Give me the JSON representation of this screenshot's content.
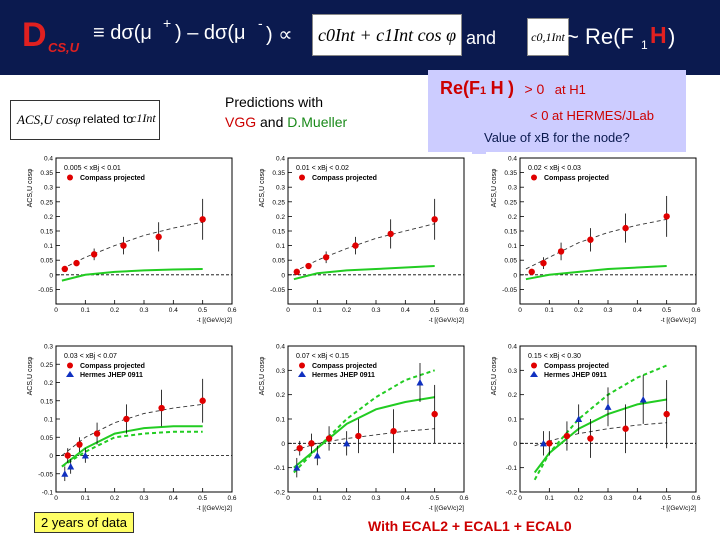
{
  "header": {
    "title_main": "D",
    "title_sub": "CS,U",
    "eq_left": "≡ dσ(μ",
    "eq_plus": "+",
    "eq_mid": ") – dσ(μ",
    "eq_minus": "-",
    "eq_right": ") ∝",
    "formula": "c0Int + c1Int cos φ",
    "and": "and",
    "c01": "c0,1Int",
    "re_label": "~ Re(F",
    "re_sub": "1",
    "re_H": "H",
    "re_close": ")"
  },
  "info_box": {
    "line1_prefix": "Re(F",
    "line1_sub": "1",
    "line1_H": "H",
    "line1_suffix": ")",
    "line1_rel": "> 0",
    "line1_where": "at H1",
    "line2": "< 0  at HERMES/JLab",
    "line3": "Value of xB for the node?"
  },
  "asym_box": {
    "symbol": "ACS,U cosφ",
    "text": "related to",
    "target": "c1Int"
  },
  "predictions": {
    "line1": "Predictions with",
    "vgg": "VGG",
    "and": "and",
    "mueller": "D.Mueller"
  },
  "bottom": {
    "left": "2 years of data",
    "right": "With ECAL2 + ECAL1 + ECAL0"
  },
  "colors": {
    "header_bg": "#0b1a4f",
    "title_red": "#e02020",
    "info_bg": "#ccccff",
    "vgg_red": "#cc0000",
    "mueller_green": "#1a8a1a",
    "compass": "#e00000",
    "hermes": "#1030c0",
    "green_curve": "#22cc22"
  },
  "chart_data": [
    {
      "type": "scatter",
      "bin": "0.005 < xBj < 0.01",
      "ylabel": "ACS,U cosφ",
      "xlabel": "-t [(GeV/c)2]",
      "xlim": [
        0,
        0.6
      ],
      "ylim": [
        -0.1,
        0.4
      ],
      "xticks": [
        0,
        0.1,
        0.2,
        0.3,
        0.4,
        0.5,
        0.6
      ],
      "xticklabels": [
        "0",
        "0.1",
        "0.2",
        "0.3",
        "0.4",
        "0.5",
        "0.6"
      ],
      "yticks": [
        -0.1,
        -0.05,
        0,
        0.05,
        0.1,
        0.15,
        0.2,
        0.25,
        0.3,
        0.35,
        0.4
      ],
      "yticklabels": [
        "",
        "-0.05",
        "0",
        "0.05",
        "0.1",
        "0.15",
        "0.2",
        "0.25",
        "0.3",
        "0.35",
        "0.4"
      ],
      "series": [
        {
          "name": "Compass projected",
          "kind": "points",
          "color": "#e00000",
          "x": [
            0.03,
            0.07,
            0.13,
            0.23,
            0.35,
            0.5
          ],
          "y": [
            0.02,
            0.04,
            0.07,
            0.1,
            0.13,
            0.19
          ],
          "err": [
            0.01,
            0.01,
            0.02,
            0.03,
            0.05,
            0.07
          ]
        },
        {
          "kind": "line",
          "style": "dashed",
          "color": "#333333",
          "x": [
            0.02,
            0.1,
            0.2,
            0.3,
            0.4,
            0.5
          ],
          "y": [
            0.02,
            0.06,
            0.1,
            0.135,
            0.16,
            0.18
          ]
        },
        {
          "kind": "line",
          "style": "solid",
          "color": "#22cc22",
          "x": [
            0.02,
            0.1,
            0.2,
            0.3,
            0.4,
            0.5
          ],
          "y": [
            -0.02,
            0.0,
            0.01,
            0.015,
            0.018,
            0.02
          ]
        }
      ]
    },
    {
      "type": "scatter",
      "bin": "0.01 < xBj < 0.02",
      "ylabel": "ACS,U cosφ",
      "xlabel": "-t [(GeV/c)2]",
      "xlim": [
        0,
        0.6
      ],
      "ylim": [
        -0.1,
        0.4
      ],
      "xticks": [
        0,
        0.1,
        0.2,
        0.3,
        0.4,
        0.5,
        0.6
      ],
      "xticklabels": [
        "0",
        "0.1",
        "0.2",
        "0.3",
        "0.4",
        "0.5",
        "0.6"
      ],
      "yticks": [
        -0.1,
        -0.05,
        0,
        0.05,
        0.1,
        0.15,
        0.2,
        0.25,
        0.3,
        0.35,
        0.4
      ],
      "yticklabels": [
        "",
        "-0.05",
        "0",
        "0.05",
        "0.1",
        "0.15",
        "0.2",
        "0.25",
        "0.3",
        "0.35",
        "0.4"
      ],
      "series": [
        {
          "name": "Compass projected",
          "kind": "points",
          "color": "#e00000",
          "x": [
            0.03,
            0.07,
            0.13,
            0.23,
            0.35,
            0.5
          ],
          "y": [
            0.01,
            0.03,
            0.06,
            0.1,
            0.14,
            0.19
          ],
          "err": [
            0.01,
            0.01,
            0.02,
            0.03,
            0.05,
            0.07
          ]
        },
        {
          "kind": "line",
          "style": "dashed",
          "color": "#333333",
          "x": [
            0.02,
            0.1,
            0.2,
            0.3,
            0.4,
            0.5
          ],
          "y": [
            0.01,
            0.05,
            0.09,
            0.125,
            0.15,
            0.175
          ]
        },
        {
          "kind": "line",
          "style": "solid",
          "color": "#22cc22",
          "x": [
            0.02,
            0.1,
            0.2,
            0.3,
            0.4,
            0.5
          ],
          "y": [
            -0.015,
            0.005,
            0.015,
            0.02,
            0.025,
            0.03
          ]
        }
      ]
    },
    {
      "type": "scatter",
      "bin": "0.02 < xBj < 0.03",
      "ylabel": "ACS,U cosφ",
      "xlabel": "-t [(GeV/c)2]",
      "xlim": [
        0,
        0.6
      ],
      "ylim": [
        -0.1,
        0.4
      ],
      "xticks": [
        0,
        0.1,
        0.2,
        0.3,
        0.4,
        0.5,
        0.6
      ],
      "xticklabels": [
        "0",
        "0.1",
        "0.2",
        "0.3",
        "0.4",
        "0.5",
        "0.6"
      ],
      "yticks": [
        -0.1,
        -0.05,
        0,
        0.05,
        0.1,
        0.15,
        0.2,
        0.25,
        0.3,
        0.35,
        0.4
      ],
      "yticklabels": [
        "",
        "-0.05",
        "0",
        "0.05",
        "0.1",
        "0.15",
        "0.2",
        "0.25",
        "0.3",
        "0.35",
        "0.4"
      ],
      "series": [
        {
          "name": "Compass projected",
          "kind": "points",
          "color": "#e00000",
          "x": [
            0.04,
            0.08,
            0.14,
            0.24,
            0.36,
            0.5
          ],
          "y": [
            0.01,
            0.04,
            0.08,
            0.12,
            0.16,
            0.2
          ],
          "err": [
            0.01,
            0.02,
            0.03,
            0.04,
            0.05,
            0.07
          ]
        },
        {
          "kind": "line",
          "style": "dashed",
          "color": "#333333",
          "x": [
            0.02,
            0.1,
            0.2,
            0.3,
            0.4,
            0.5
          ],
          "y": [
            0.02,
            0.06,
            0.11,
            0.145,
            0.17,
            0.19
          ]
        },
        {
          "kind": "line",
          "style": "solid",
          "color": "#22cc22",
          "x": [
            0.02,
            0.1,
            0.2,
            0.3,
            0.4,
            0.5
          ],
          "y": [
            -0.015,
            0.0,
            0.01,
            0.02,
            0.025,
            0.03
          ]
        }
      ]
    },
    {
      "type": "scatter",
      "bin": "0.03 < xBj < 0.07",
      "ylabel": "ACS,U cosφ",
      "xlabel": "-t [(GeV/c)2]",
      "xlim": [
        0,
        0.6
      ],
      "ylim": [
        -0.1,
        0.3
      ],
      "xticks": [
        0,
        0.1,
        0.2,
        0.3,
        0.4,
        0.5,
        0.6
      ],
      "xticklabels": [
        "0",
        "0.1",
        "0.2",
        "0.3",
        "0.4",
        "0.5",
        "0.6"
      ],
      "yticks": [
        -0.1,
        -0.05,
        0,
        0.05,
        0.1,
        0.15,
        0.2,
        0.25,
        0.3
      ],
      "yticklabels": [
        "-0.1",
        "-0.05",
        "0",
        "0.05",
        "0.1",
        "0.15",
        "0.2",
        "0.25",
        "0.3"
      ],
      "series": [
        {
          "name": "Compass projected",
          "kind": "points",
          "color": "#e00000",
          "x": [
            0.04,
            0.08,
            0.14,
            0.24,
            0.36,
            0.5
          ],
          "y": [
            0.0,
            0.03,
            0.06,
            0.1,
            0.13,
            0.15
          ],
          "err": [
            0.02,
            0.02,
            0.03,
            0.04,
            0.05,
            0.06
          ]
        },
        {
          "name": "Hermes JHEP 0911",
          "kind": "triangles",
          "color": "#1030c0",
          "x": [
            0.03,
            0.05,
            0.1
          ],
          "y": [
            -0.05,
            -0.03,
            0.0
          ],
          "err": [
            0.02,
            0.02,
            0.02
          ]
        },
        {
          "kind": "line",
          "style": "dashed",
          "color": "#333333",
          "x": [
            0.02,
            0.1,
            0.2,
            0.3,
            0.4,
            0.5
          ],
          "y": [
            0.0,
            0.05,
            0.09,
            0.115,
            0.13,
            0.14
          ]
        },
        {
          "kind": "line",
          "style": "solid",
          "color": "#22cc22",
          "x": [
            0.02,
            0.1,
            0.2,
            0.3,
            0.4,
            0.5
          ],
          "y": [
            -0.03,
            0.02,
            0.06,
            0.075,
            0.08,
            0.08
          ]
        },
        {
          "kind": "line",
          "style": "dashed",
          "color": "#22cc22",
          "x": [
            0.02,
            0.1,
            0.2,
            0.3,
            0.4,
            0.5
          ],
          "y": [
            -0.03,
            0.01,
            0.05,
            0.06,
            0.065,
            0.065
          ]
        }
      ]
    },
    {
      "type": "scatter",
      "bin": "0.07 < xBj < 0.15",
      "ylabel": "ACS,U cosφ",
      "xlabel": "-t [(GeV/c)2]",
      "xlim": [
        0,
        0.6
      ],
      "ylim": [
        -0.2,
        0.4
      ],
      "xticks": [
        0,
        0.1,
        0.2,
        0.3,
        0.4,
        0.5,
        0.6
      ],
      "xticklabels": [
        "0",
        "0.1",
        "0.2",
        "0.3",
        "0.4",
        "0.5",
        "0.6"
      ],
      "yticks": [
        -0.2,
        -0.1,
        0,
        0.1,
        0.2,
        0.3,
        0.4
      ],
      "yticklabels": [
        "-0.2",
        "-0.1",
        "0",
        "0.1",
        "0.2",
        "0.3",
        "0.4"
      ],
      "series": [
        {
          "name": "Compass projected",
          "kind": "points",
          "color": "#e00000",
          "x": [
            0.04,
            0.08,
            0.14,
            0.24,
            0.36,
            0.5
          ],
          "y": [
            -0.02,
            0.0,
            0.02,
            0.03,
            0.05,
            0.12
          ],
          "err": [
            0.03,
            0.04,
            0.05,
            0.07,
            0.09,
            0.12
          ]
        },
        {
          "name": "Hermes JHEP 0911",
          "kind": "triangles",
          "color": "#1030c0",
          "x": [
            0.03,
            0.1,
            0.2,
            0.45
          ],
          "y": [
            -0.1,
            -0.05,
            0.0,
            0.25
          ],
          "err": [
            0.04,
            0.04,
            0.05,
            0.08
          ]
        },
        {
          "kind": "line",
          "style": "dashed",
          "color": "#333333",
          "x": [
            0.02,
            0.1,
            0.2,
            0.3,
            0.4,
            0.5
          ],
          "y": [
            -0.03,
            0.0,
            0.02,
            0.035,
            0.05,
            0.06
          ]
        },
        {
          "kind": "line",
          "style": "solid",
          "color": "#22cc22",
          "x": [
            0.02,
            0.1,
            0.2,
            0.3,
            0.4,
            0.5
          ],
          "y": [
            -0.1,
            -0.02,
            0.08,
            0.14,
            0.17,
            0.19
          ]
        },
        {
          "kind": "line",
          "style": "dashed",
          "color": "#22cc22",
          "x": [
            0.02,
            0.1,
            0.2,
            0.3,
            0.4,
            0.5
          ],
          "y": [
            -0.12,
            -0.02,
            0.1,
            0.19,
            0.26,
            0.3
          ]
        }
      ]
    },
    {
      "type": "scatter",
      "bin": "0.15 < xBj < 0.30",
      "ylabel": "ACS,U cosφ",
      "xlabel": "-t [(GeV/c)2]",
      "xlim": [
        0,
        0.6
      ],
      "ylim": [
        -0.2,
        0.4
      ],
      "xticks": [
        0,
        0.1,
        0.2,
        0.3,
        0.4,
        0.5,
        0.6
      ],
      "xticklabels": [
        "0",
        "0.1",
        "0.2",
        "0.3",
        "0.4",
        "0.5",
        "0.6"
      ],
      "yticks": [
        -0.2,
        -0.1,
        0,
        0.1,
        0.2,
        0.3,
        0.4
      ],
      "yticklabels": [
        "-0.2",
        "-0.1",
        "0",
        "0.1",
        "0.2",
        "0.3",
        "0.4"
      ],
      "series": [
        {
          "name": "Compass projected",
          "kind": "points",
          "color": "#e00000",
          "x": [
            0.1,
            0.16,
            0.24,
            0.36,
            0.5
          ],
          "y": [
            0.0,
            0.03,
            0.02,
            0.06,
            0.12
          ],
          "err": [
            0.05,
            0.06,
            0.08,
            0.1,
            0.14
          ]
        },
        {
          "name": "Hermes JHEP 0911",
          "kind": "triangles",
          "color": "#1030c0",
          "x": [
            0.08,
            0.2,
            0.3,
            0.42
          ],
          "y": [
            0.0,
            0.1,
            0.15,
            0.18
          ],
          "err": [
            0.05,
            0.06,
            0.08,
            0.1
          ]
        },
        {
          "kind": "line",
          "style": "dashed",
          "color": "#333333",
          "x": [
            0.05,
            0.1,
            0.2,
            0.3,
            0.4,
            0.5
          ],
          "y": [
            -0.01,
            0.01,
            0.04,
            0.06,
            0.075,
            0.085
          ]
        },
        {
          "kind": "line",
          "style": "solid",
          "color": "#22cc22",
          "x": [
            0.05,
            0.1,
            0.2,
            0.3,
            0.4,
            0.5
          ],
          "y": [
            -0.12,
            -0.04,
            0.06,
            0.12,
            0.16,
            0.18
          ]
        },
        {
          "kind": "line",
          "style": "dashed",
          "color": "#22cc22",
          "x": [
            0.05,
            0.1,
            0.2,
            0.3,
            0.4,
            0.5
          ],
          "y": [
            -0.15,
            -0.04,
            0.1,
            0.2,
            0.27,
            0.32
          ]
        }
      ]
    }
  ]
}
